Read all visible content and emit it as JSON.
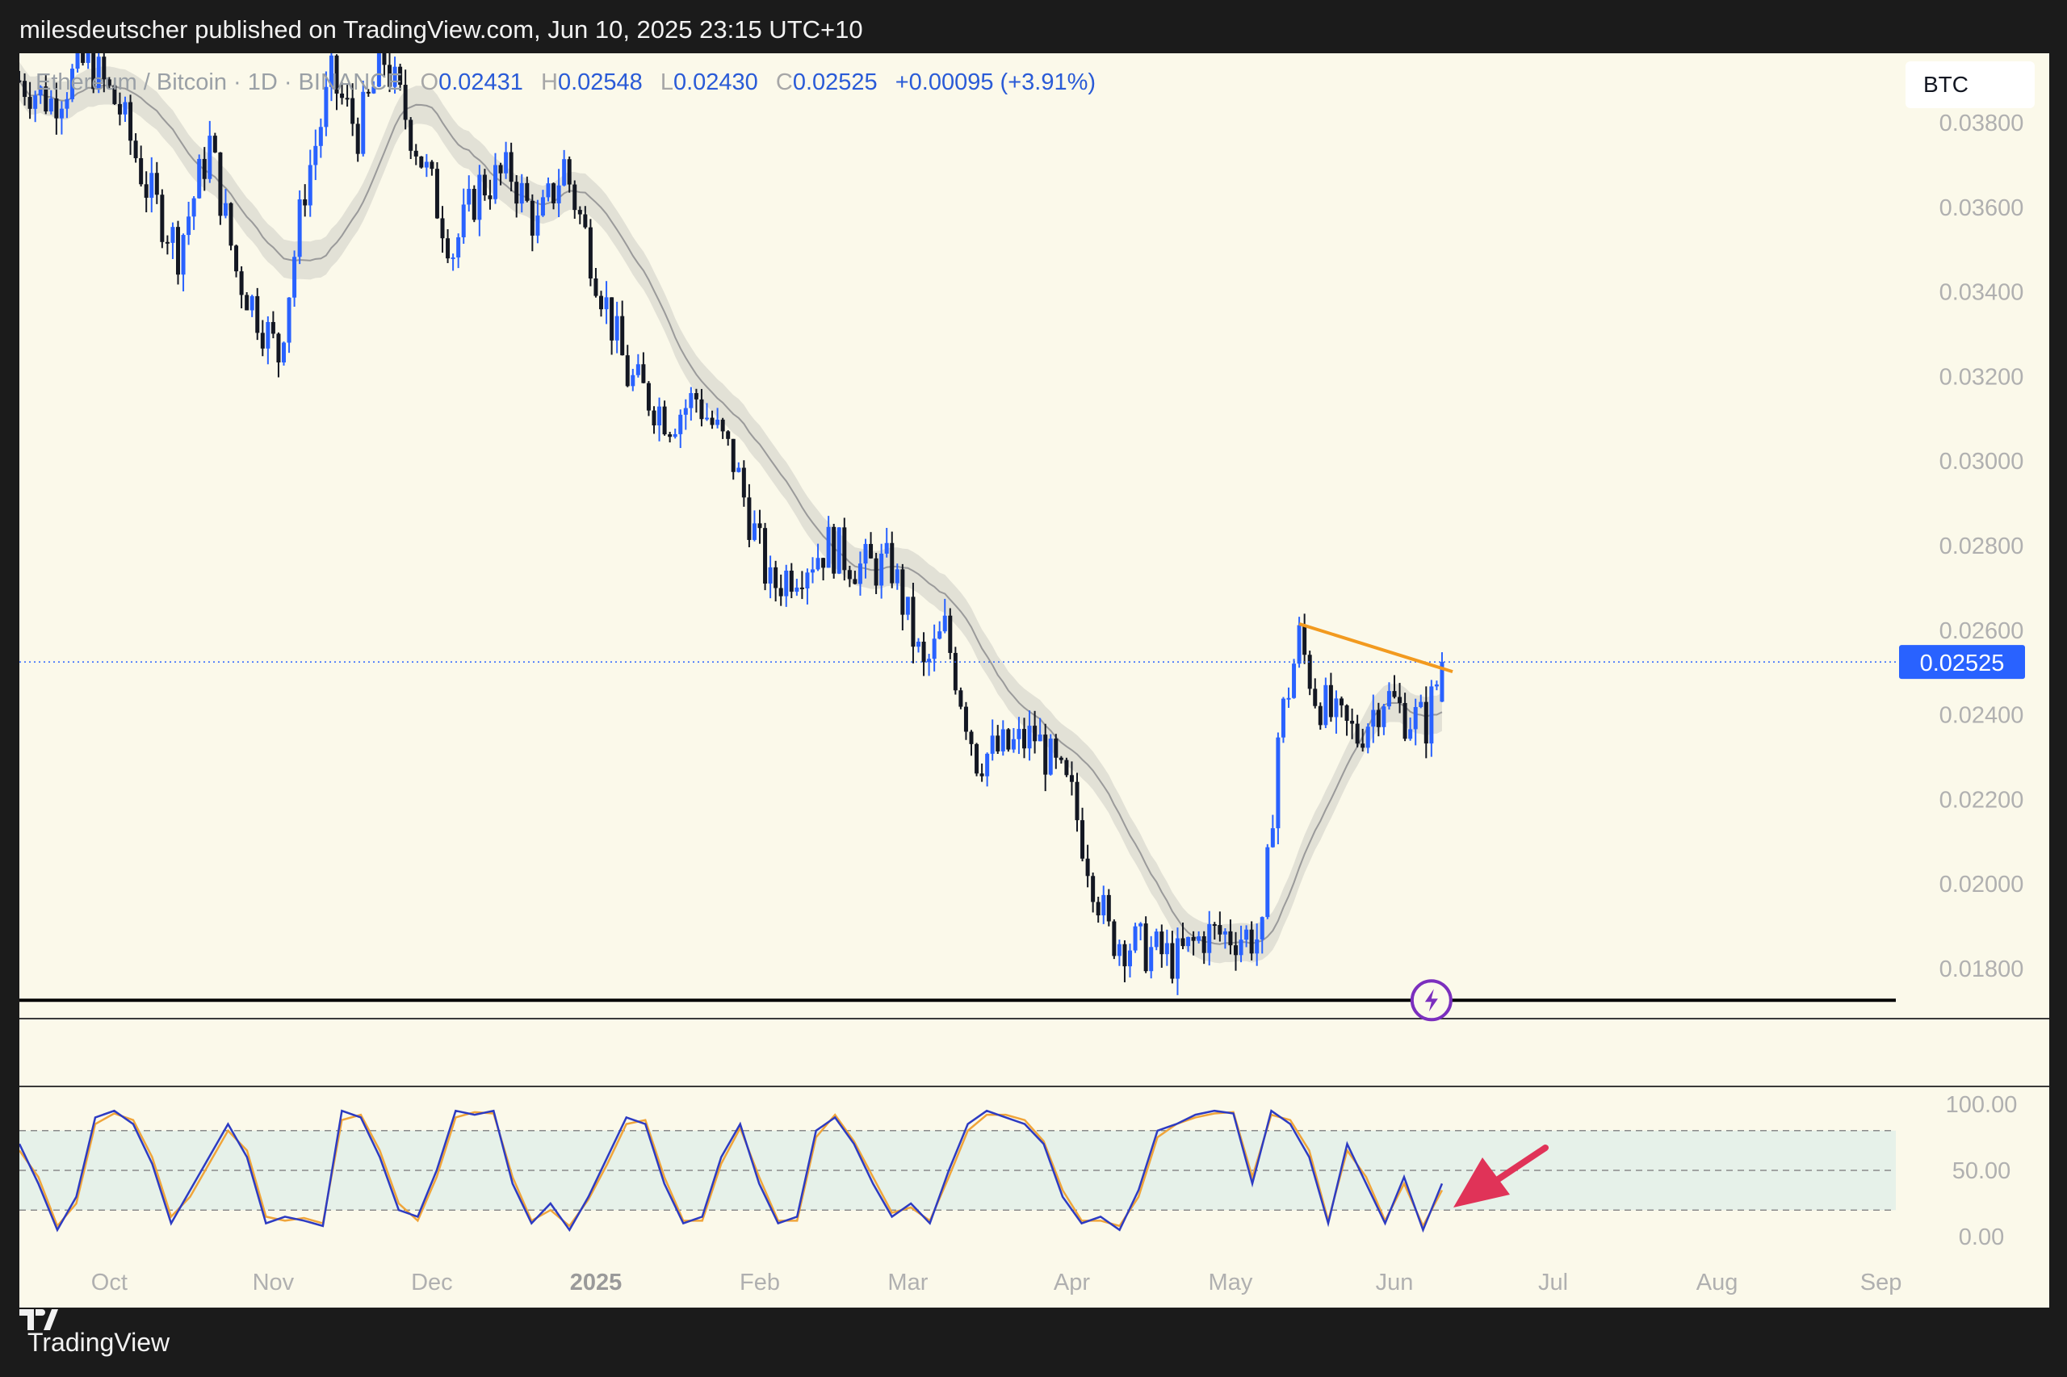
{
  "header": {
    "text": "milesdeutscher published on TradingView.com, Jun 10, 2025 23:15 UTC+10"
  },
  "footer": {
    "brand": "TradingView"
  },
  "legend": {
    "symbol": "Ethereum / Bitcoin · 1D · BINANCE",
    "o_label": "O",
    "o": "0.02431",
    "h_label": "H",
    "h": "0.02548",
    "l_label": "L",
    "l": "0.02430",
    "c_label": "C",
    "c": "0.02525",
    "change": "+0.00095 (+3.91%)"
  },
  "currency_badge": "BTC",
  "last_price_label": "0.02525",
  "colors": {
    "background": "#fbf9ea",
    "up": "#2962ff",
    "down": "#131722",
    "trendline": "#f29a1f",
    "price_line": "#2962ff",
    "ma_band": "#d9d8cf",
    "stoch_k": "#2d3bc2",
    "stoch_d": "#f0a53a",
    "arrow": "#e03358",
    "alert": "#7b2fbe"
  },
  "chart_data": [
    {
      "type": "candlestick",
      "title": "",
      "x_axis": {
        "ticks": [
          "Oct",
          "Nov",
          "Dec",
          "2025",
          "Feb",
          "Mar",
          "Apr",
          "May",
          "Jun",
          "Jul",
          "Aug",
          "Sep"
        ]
      },
      "y_axis": {
        "range": [
          0.017,
          0.039
        ],
        "ticks": [
          "0.03800",
          "0.03600",
          "0.03400",
          "0.03200",
          "0.03000",
          "0.02800",
          "0.02600",
          "0.02400",
          "0.02200",
          "0.02000",
          "0.01800"
        ]
      },
      "last_price": 0.02525,
      "support_level": 0.01725,
      "trendline": {
        "from": [
          "2025-05-14",
          0.02615
        ],
        "to": [
          "2025-06-12",
          0.02502
        ]
      },
      "price_path": [
        [
          "2024-09-14",
          0.039
        ],
        [
          "2024-09-20",
          0.0385
        ],
        [
          "2024-09-27",
          0.0395
        ],
        [
          "2024-10-03",
          0.0383
        ],
        [
          "2024-10-08",
          0.0365
        ],
        [
          "2024-10-14",
          0.035
        ],
        [
          "2024-10-20",
          0.0375
        ],
        [
          "2024-10-25",
          0.0345
        ],
        [
          "2024-11-02",
          0.0325
        ],
        [
          "2024-11-07",
          0.0365
        ],
        [
          "2024-11-12",
          0.039
        ],
        [
          "2024-11-17",
          0.0378
        ],
        [
          "2024-11-22",
          0.0395
        ],
        [
          "2024-11-28",
          0.0375
        ],
        [
          "2024-12-05",
          0.035
        ],
        [
          "2024-12-10",
          0.0365
        ],
        [
          "2024-12-16",
          0.0368
        ],
        [
          "2024-12-21",
          0.0355
        ],
        [
          "2024-12-26",
          0.037
        ],
        [
          "2025-01-01",
          0.0345
        ],
        [
          "2025-01-07",
          0.032
        ],
        [
          "2025-01-15",
          0.031
        ],
        [
          "2025-01-20",
          0.0315
        ],
        [
          "2025-01-27",
          0.03
        ],
        [
          "2025-02-03",
          0.027
        ],
        [
          "2025-02-08",
          0.0275
        ],
        [
          "2025-02-14",
          0.028
        ],
        [
          "2025-02-20",
          0.0275
        ],
        [
          "2025-02-26",
          0.0275
        ],
        [
          "2025-03-04",
          0.025
        ],
        [
          "2025-03-08",
          0.026
        ],
        [
          "2025-03-14",
          0.023
        ],
        [
          "2025-03-20",
          0.0232
        ],
        [
          "2025-03-25",
          0.0235
        ],
        [
          "2025-04-01",
          0.022
        ],
        [
          "2025-04-08",
          0.0188
        ],
        [
          "2025-04-14",
          0.0185
        ],
        [
          "2025-04-21",
          0.0182
        ],
        [
          "2025-04-26",
          0.0188
        ],
        [
          "2025-05-03",
          0.0188
        ],
        [
          "2025-05-07",
          0.0187
        ],
        [
          "2025-05-10",
          0.0235
        ],
        [
          "2025-05-14",
          0.0258
        ],
        [
          "2025-05-17",
          0.0245
        ],
        [
          "2025-05-21",
          0.0238
        ],
        [
          "2025-05-25",
          0.0235
        ],
        [
          "2025-05-30",
          0.0245
        ],
        [
          "2025-06-03",
          0.024
        ],
        [
          "2025-06-07",
          0.0238
        ],
        [
          "2025-06-10",
          0.02525
        ]
      ]
    },
    {
      "type": "line",
      "title": "",
      "y_axis": {
        "range": [
          0,
          100
        ],
        "ticks": [
          "100.00",
          "50.00",
          "0.00"
        ]
      },
      "band": [
        20,
        80
      ],
      "series": [
        {
          "values": [
            70,
            40,
            5,
            30,
            90,
            95,
            85,
            55,
            10,
            35,
            60,
            85,
            60,
            10,
            15,
            12,
            8,
            95,
            90,
            60,
            20,
            15,
            50,
            95,
            92,
            95,
            40,
            10,
            25,
            5,
            30,
            60,
            90,
            85,
            40,
            10,
            15,
            60,
            85,
            40,
            10,
            15,
            80,
            90,
            70,
            40,
            15,
            25,
            10,
            50,
            85,
            95,
            90,
            85,
            70,
            30,
            10,
            15,
            5,
            35,
            80,
            85,
            92,
            95,
            93,
            40,
            95,
            85,
            60,
            10,
            70,
            40,
            10,
            45,
            5,
            40
          ]
        },
        {
          "values": [
            65,
            45,
            8,
            25,
            85,
            93,
            88,
            60,
            15,
            30,
            55,
            80,
            65,
            15,
            12,
            14,
            10,
            88,
            92,
            65,
            25,
            12,
            45,
            90,
            94,
            93,
            45,
            12,
            20,
            8,
            28,
            55,
            85,
            88,
            45,
            12,
            12,
            55,
            82,
            45,
            12,
            12,
            75,
            92,
            72,
            45,
            18,
            22,
            12,
            45,
            80,
            92,
            92,
            88,
            72,
            35,
            12,
            12,
            8,
            30,
            75,
            85,
            90,
            93,
            94,
            45,
            92,
            88,
            65,
            12,
            65,
            45,
            12,
            40,
            8,
            35
          ]
        }
      ]
    }
  ]
}
